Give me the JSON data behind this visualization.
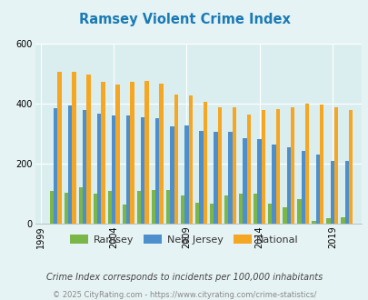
{
  "title": "Ramsey Violent Crime Index",
  "title_color": "#1a7ab5",
  "years": [
    2000,
    2001,
    2002,
    2003,
    2004,
    2005,
    2006,
    2007,
    2008,
    2009,
    2010,
    2011,
    2012,
    2013,
    2014,
    2015,
    2016,
    2017,
    2018,
    2019,
    2020
  ],
  "ramsey": [
    110,
    102,
    120,
    100,
    108,
    62,
    108,
    112,
    112,
    95,
    70,
    65,
    95,
    100,
    100,
    65,
    55,
    82,
    10,
    18,
    20
  ],
  "new_jersey": [
    383,
    394,
    377,
    365,
    360,
    360,
    355,
    352,
    325,
    328,
    308,
    305,
    305,
    285,
    280,
    263,
    253,
    242,
    230,
    210,
    210
  ],
  "national": [
    507,
    507,
    498,
    471,
    463,
    471,
    474,
    465,
    430,
    427,
    405,
    387,
    387,
    362,
    377,
    381,
    387,
    400,
    396,
    387,
    379
  ],
  "bar_width": 0.27,
  "ylim": [
    0,
    600
  ],
  "yticks": [
    0,
    200,
    400,
    600
  ],
  "xtick_years": [
    1999,
    2004,
    2009,
    2014,
    2019
  ],
  "xlim_left": 1998.6,
  "xlim_right": 2021.0,
  "color_ramsey": "#7ab648",
  "color_nj": "#4d8fcc",
  "color_national": "#f5a623",
  "bg_color": "#e6f3f4",
  "plot_area_bg": "#daeef0",
  "legend_labels": [
    "Ramsey",
    "New Jersey",
    "National"
  ],
  "footer_text": "Crime Index corresponds to incidents per 100,000 inhabitants",
  "footer_text2": "© 2025 CityRating.com - https://www.cityrating.com/crime-statistics/",
  "footer_color": "#444444",
  "footer_color2": "#888888",
  "grid_color": "white"
}
